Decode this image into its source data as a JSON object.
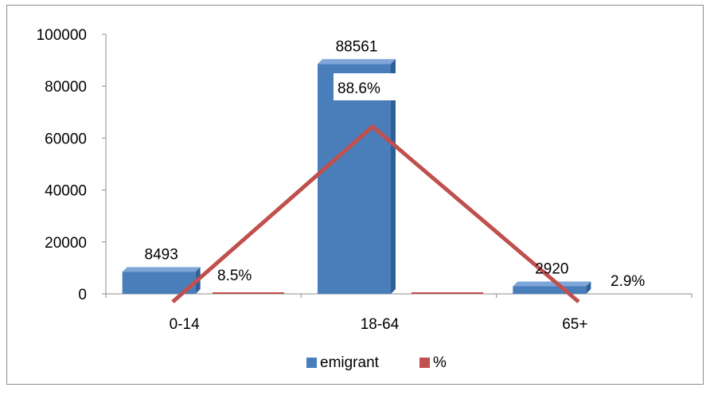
{
  "chart_data": {
    "type": "bar",
    "categories": [
      "0-14",
      "18-64",
      "65+"
    ],
    "series": [
      {
        "name": "emigrant",
        "kind": "bar",
        "values": [
          8493,
          88561,
          2920
        ],
        "labels": [
          "8493",
          "88561",
          "2920"
        ],
        "color": "#4a7ebb"
      },
      {
        "name": "%",
        "kind": "line",
        "values": [
          8.5,
          88.6,
          2.9
        ],
        "labels": [
          "8.5%",
          "88.6%",
          "2.9%"
        ],
        "color": "#c0504d"
      }
    ],
    "y_ticks": [
      "0",
      "20000",
      "40000",
      "60000",
      "80000",
      "100000"
    ],
    "ylim": [
      0,
      100000
    ],
    "secondary_ylim": [
      0,
      100
    ],
    "grid": false,
    "legend_position": "bottom"
  }
}
